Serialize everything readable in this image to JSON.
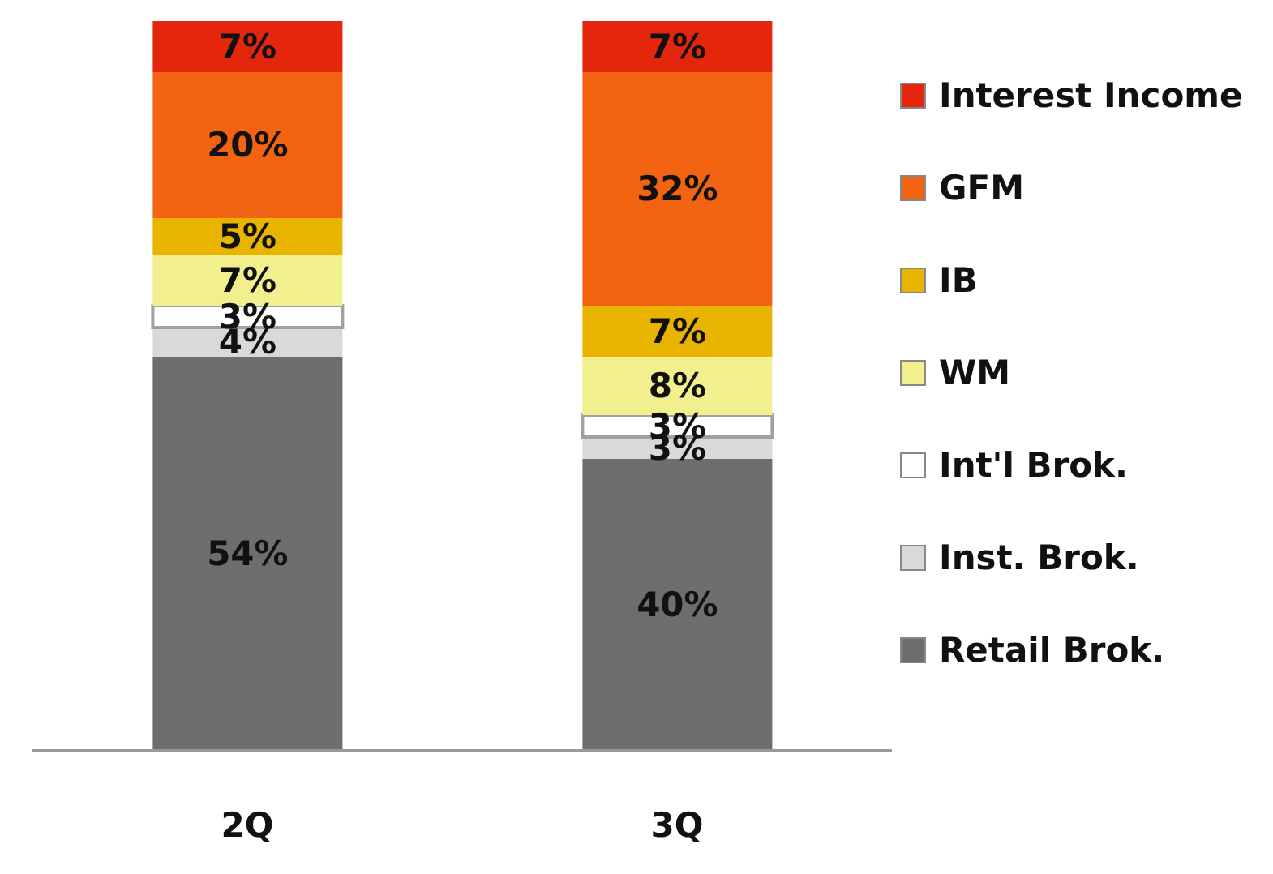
{
  "chart_data": {
    "type": "bar",
    "stacked": true,
    "categories": [
      "2Q",
      "3Q"
    ],
    "legend": "right",
    "series": [
      {
        "name": "Retail Brok.",
        "color": "#6e6e6e",
        "values": [
          54,
          40
        ],
        "value_labels": [
          "54%",
          "40%"
        ]
      },
      {
        "name": "Inst. Brok.",
        "color": "#d9d9d9",
        "values": [
          4,
          3
        ],
        "value_labels": [
          "4%",
          "3%"
        ]
      },
      {
        "name": "Int'l Brok.",
        "color": "#ffffff",
        "values": [
          3,
          3
        ],
        "value_labels": [
          "3%",
          "3%"
        ]
      },
      {
        "name": "WM",
        "color": "#f2f08e",
        "values": [
          7,
          8
        ],
        "value_labels": [
          "7%",
          "8%"
        ]
      },
      {
        "name": "IB",
        "color": "#e9b400",
        "values": [
          5,
          7
        ],
        "value_labels": [
          "5%",
          "7%"
        ]
      },
      {
        "name": "GFM",
        "color": "#f26412",
        "values": [
          20,
          32
        ],
        "value_labels": [
          "20%",
          "32%"
        ]
      },
      {
        "name": "Interest Income",
        "color": "#e4260c",
        "values": [
          7,
          7
        ],
        "value_labels": [
          "7%",
          "7%"
        ]
      }
    ]
  }
}
